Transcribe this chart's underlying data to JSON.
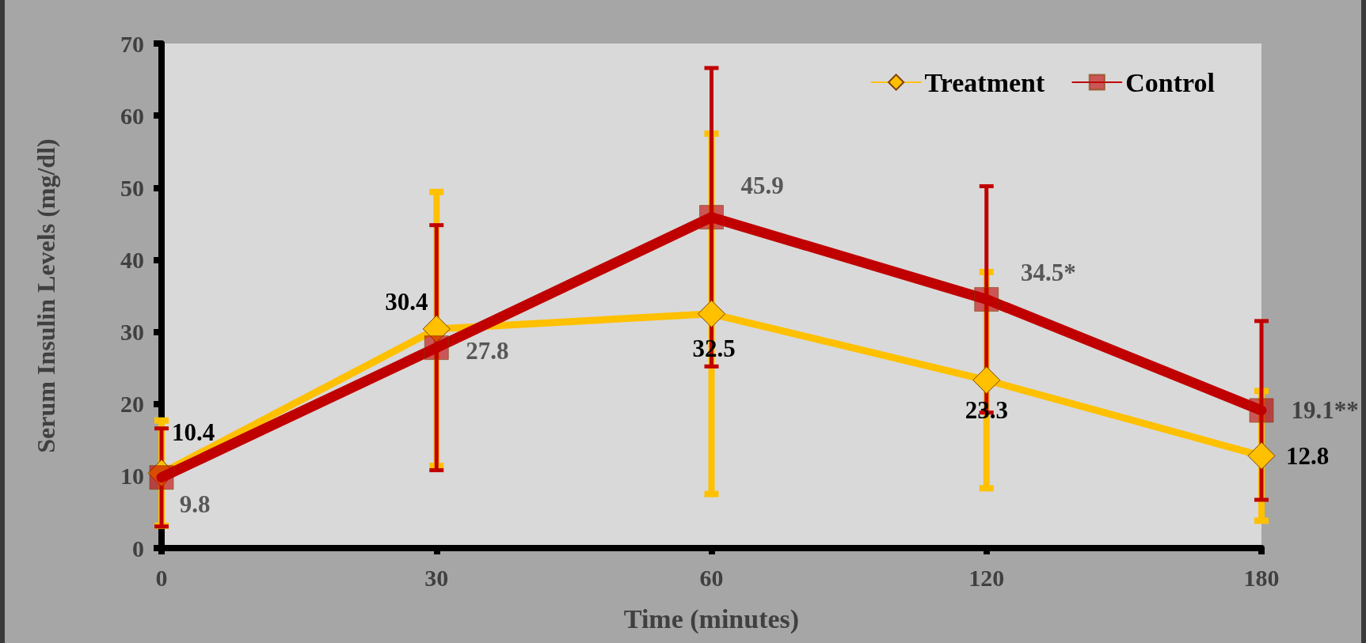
{
  "chart_data": {
    "type": "line",
    "xlabel": "Time (minutes)",
    "ylabel": "Serum Insulin Levels (mg/dl)",
    "categories": [
      "0",
      "30",
      "60",
      "120",
      "180"
    ],
    "series": [
      {
        "name": "Treatment",
        "color": "#ffc000",
        "marker": "diamond",
        "values": [
          10.4,
          30.4,
          32.5,
          23.3,
          12.8
        ],
        "value_labels": [
          "10.4",
          "30.4",
          "32.5",
          "23.3",
          "12.8"
        ],
        "errors": [
          7.3,
          19,
          25,
          15,
          9
        ]
      },
      {
        "name": "Control",
        "color": "#c00000",
        "marker": "square",
        "values": [
          9.8,
          27.8,
          45.9,
          34.5,
          19.1
        ],
        "value_labels": [
          "9.8",
          "27.8",
          "45.9",
          "34.5*",
          "19.1**"
        ],
        "errors": [
          6.8,
          17,
          20.7,
          15.7,
          12.4
        ]
      }
    ],
    "ylim": [
      0,
      70
    ],
    "yticks": [
      0,
      10,
      20,
      30,
      40,
      50,
      60,
      70
    ],
    "grid": false,
    "legend": "top right",
    "line_style": "solid"
  }
}
